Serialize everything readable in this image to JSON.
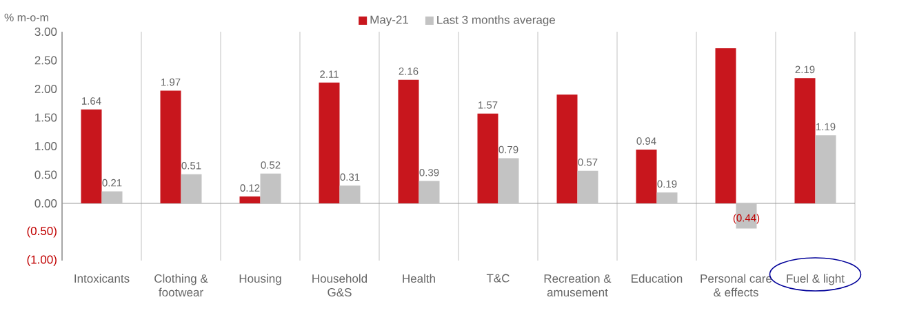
{
  "chart_data": {
    "type": "bar",
    "ylabel": "% m-o-m",
    "categories": [
      "Intoxicants",
      "Clothing & footwear",
      "Housing",
      "Household G&S",
      "Health",
      "T&C",
      "Recreation & amusement",
      "Education",
      "Personal care & effects",
      "Fuel & light"
    ],
    "series": [
      {
        "name": "May-21",
        "color": "#c8161d",
        "values": [
          1.64,
          1.97,
          0.12,
          2.11,
          2.16,
          1.57,
          1.9,
          0.94,
          2.71,
          2.19
        ],
        "value_labels": [
          "1.64",
          "1.97",
          "0.12",
          "2.11",
          "2.16",
          "1.57",
          null,
          "0.94",
          null,
          "2.19"
        ]
      },
      {
        "name": "Last 3 months average",
        "color": "#c3c3c3",
        "values": [
          0.21,
          0.51,
          0.52,
          0.31,
          0.39,
          0.79,
          0.57,
          0.19,
          -0.44,
          1.19
        ],
        "value_labels": [
          "0.21",
          "0.51",
          "0.52",
          "0.31",
          "0.39",
          "0.79",
          "0.57",
          "0.19",
          "(0.44)",
          "1.19"
        ]
      }
    ],
    "ylim": [
      -1,
      3
    ],
    "yticks": [
      {
        "value": -1,
        "label": "(1.00)"
      },
      {
        "value": -0.5,
        "label": "(0.50)"
      },
      {
        "value": 0,
        "label": "0.00"
      },
      {
        "value": 0.5,
        "label": "0.50"
      },
      {
        "value": 1,
        "label": "1.00"
      },
      {
        "value": 1.5,
        "label": "1.50"
      },
      {
        "value": 2,
        "label": "2.00"
      },
      {
        "value": 2.5,
        "label": "2.50"
      },
      {
        "value": 3,
        "label": "3.00"
      }
    ],
    "grid": "x",
    "legend": "top"
  }
}
